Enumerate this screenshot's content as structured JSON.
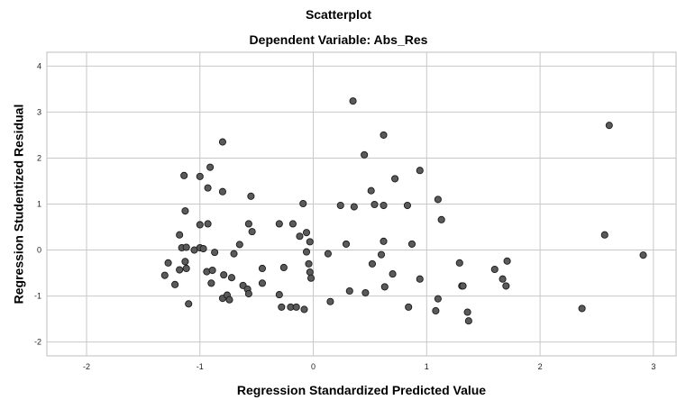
{
  "chart_data": {
    "type": "scatter",
    "title": "Scatterplot",
    "subtitle": "Dependent Variable: Abs_Res",
    "xlabel": "Regression Standardized Predicted Value",
    "ylabel": "Regression Studentized Residual",
    "xlim": [
      -2.35,
      3.2
    ],
    "ylim": [
      -2.3,
      4.3
    ],
    "xticks": [
      -2,
      -1,
      0,
      1,
      2,
      3
    ],
    "yticks": [
      -2,
      -1,
      0,
      1,
      2,
      3,
      4
    ],
    "grid": true,
    "marker_color": "#5a5a5a",
    "marker_edge": "#1a1a1a",
    "points": [
      [
        -1.31,
        -0.55
      ],
      [
        -1.28,
        -0.28
      ],
      [
        -1.22,
        -0.75
      ],
      [
        -1.18,
        0.33
      ],
      [
        -1.18,
        -0.43
      ],
      [
        -1.16,
        0.05
      ],
      [
        -1.14,
        1.62
      ],
      [
        -1.13,
        0.85
      ],
      [
        -1.13,
        -0.25
      ],
      [
        -1.12,
        0.06
      ],
      [
        -1.12,
        -0.4
      ],
      [
        -1.1,
        -1.17
      ],
      [
        -1.05,
        0.0
      ],
      [
        -1.0,
        1.6
      ],
      [
        -1.0,
        0.55
      ],
      [
        -1.0,
        0.05
      ],
      [
        -0.97,
        0.03
      ],
      [
        -0.94,
        -0.47
      ],
      [
        -0.93,
        0.57
      ],
      [
        -0.93,
        1.35
      ],
      [
        -0.91,
        1.8
      ],
      [
        -0.9,
        -0.72
      ],
      [
        -0.89,
        -0.44
      ],
      [
        -0.87,
        -0.05
      ],
      [
        -0.8,
        2.35
      ],
      [
        -0.8,
        1.27
      ],
      [
        -0.8,
        -1.05
      ],
      [
        -0.79,
        -0.54
      ],
      [
        -0.76,
        -0.98
      ],
      [
        -0.74,
        -1.08
      ],
      [
        -0.72,
        -0.6
      ],
      [
        -0.7,
        -0.08
      ],
      [
        -0.65,
        0.12
      ],
      [
        -0.62,
        -0.77
      ],
      [
        -0.58,
        -0.85
      ],
      [
        -0.57,
        -0.95
      ],
      [
        -0.57,
        0.57
      ],
      [
        -0.55,
        1.17
      ],
      [
        -0.54,
        0.4
      ],
      [
        -0.45,
        -0.4
      ],
      [
        -0.45,
        -0.72
      ],
      [
        -0.3,
        0.57
      ],
      [
        -0.3,
        -0.97
      ],
      [
        -0.28,
        -1.24
      ],
      [
        -0.26,
        -0.38
      ],
      [
        -0.2,
        -1.24
      ],
      [
        -0.18,
        0.57
      ],
      [
        -0.15,
        -1.24
      ],
      [
        -0.12,
        0.3
      ],
      [
        -0.09,
        1.01
      ],
      [
        -0.08,
        -1.29
      ],
      [
        -0.06,
        0.38
      ],
      [
        -0.06,
        -0.04
      ],
      [
        -0.04,
        -0.3
      ],
      [
        -0.03,
        0.18
      ],
      [
        -0.03,
        -0.48
      ],
      [
        -0.02,
        -0.61
      ],
      [
        0.13,
        -0.08
      ],
      [
        0.15,
        -1.12
      ],
      [
        0.24,
        0.97
      ],
      [
        0.29,
        0.13
      ],
      [
        0.32,
        -0.89
      ],
      [
        0.35,
        3.24
      ],
      [
        0.36,
        0.94
      ],
      [
        0.45,
        2.07
      ],
      [
        0.46,
        -0.93
      ],
      [
        0.51,
        1.29
      ],
      [
        0.52,
        -0.3
      ],
      [
        0.54,
        0.99
      ],
      [
        0.6,
        -0.1
      ],
      [
        0.62,
        2.5
      ],
      [
        0.62,
        0.97
      ],
      [
        0.62,
        0.19
      ],
      [
        0.63,
        -0.8
      ],
      [
        0.7,
        -0.52
      ],
      [
        0.72,
        1.55
      ],
      [
        0.83,
        0.97
      ],
      [
        0.84,
        -1.24
      ],
      [
        0.87,
        0.13
      ],
      [
        0.94,
        1.73
      ],
      [
        0.94,
        -0.63
      ],
      [
        1.08,
        -1.32
      ],
      [
        1.1,
        1.1
      ],
      [
        1.1,
        -1.06
      ],
      [
        1.13,
        0.66
      ],
      [
        1.29,
        -0.28
      ],
      [
        1.31,
        -0.78
      ],
      [
        1.32,
        -0.78
      ],
      [
        1.36,
        -1.35
      ],
      [
        1.37,
        -1.54
      ],
      [
        1.6,
        -0.42
      ],
      [
        1.67,
        -0.63
      ],
      [
        1.7,
        -0.78
      ],
      [
        1.71,
        -0.24
      ],
      [
        2.37,
        -1.27
      ],
      [
        2.57,
        0.33
      ],
      [
        2.61,
        2.71
      ],
      [
        2.91,
        -0.11
      ]
    ]
  }
}
